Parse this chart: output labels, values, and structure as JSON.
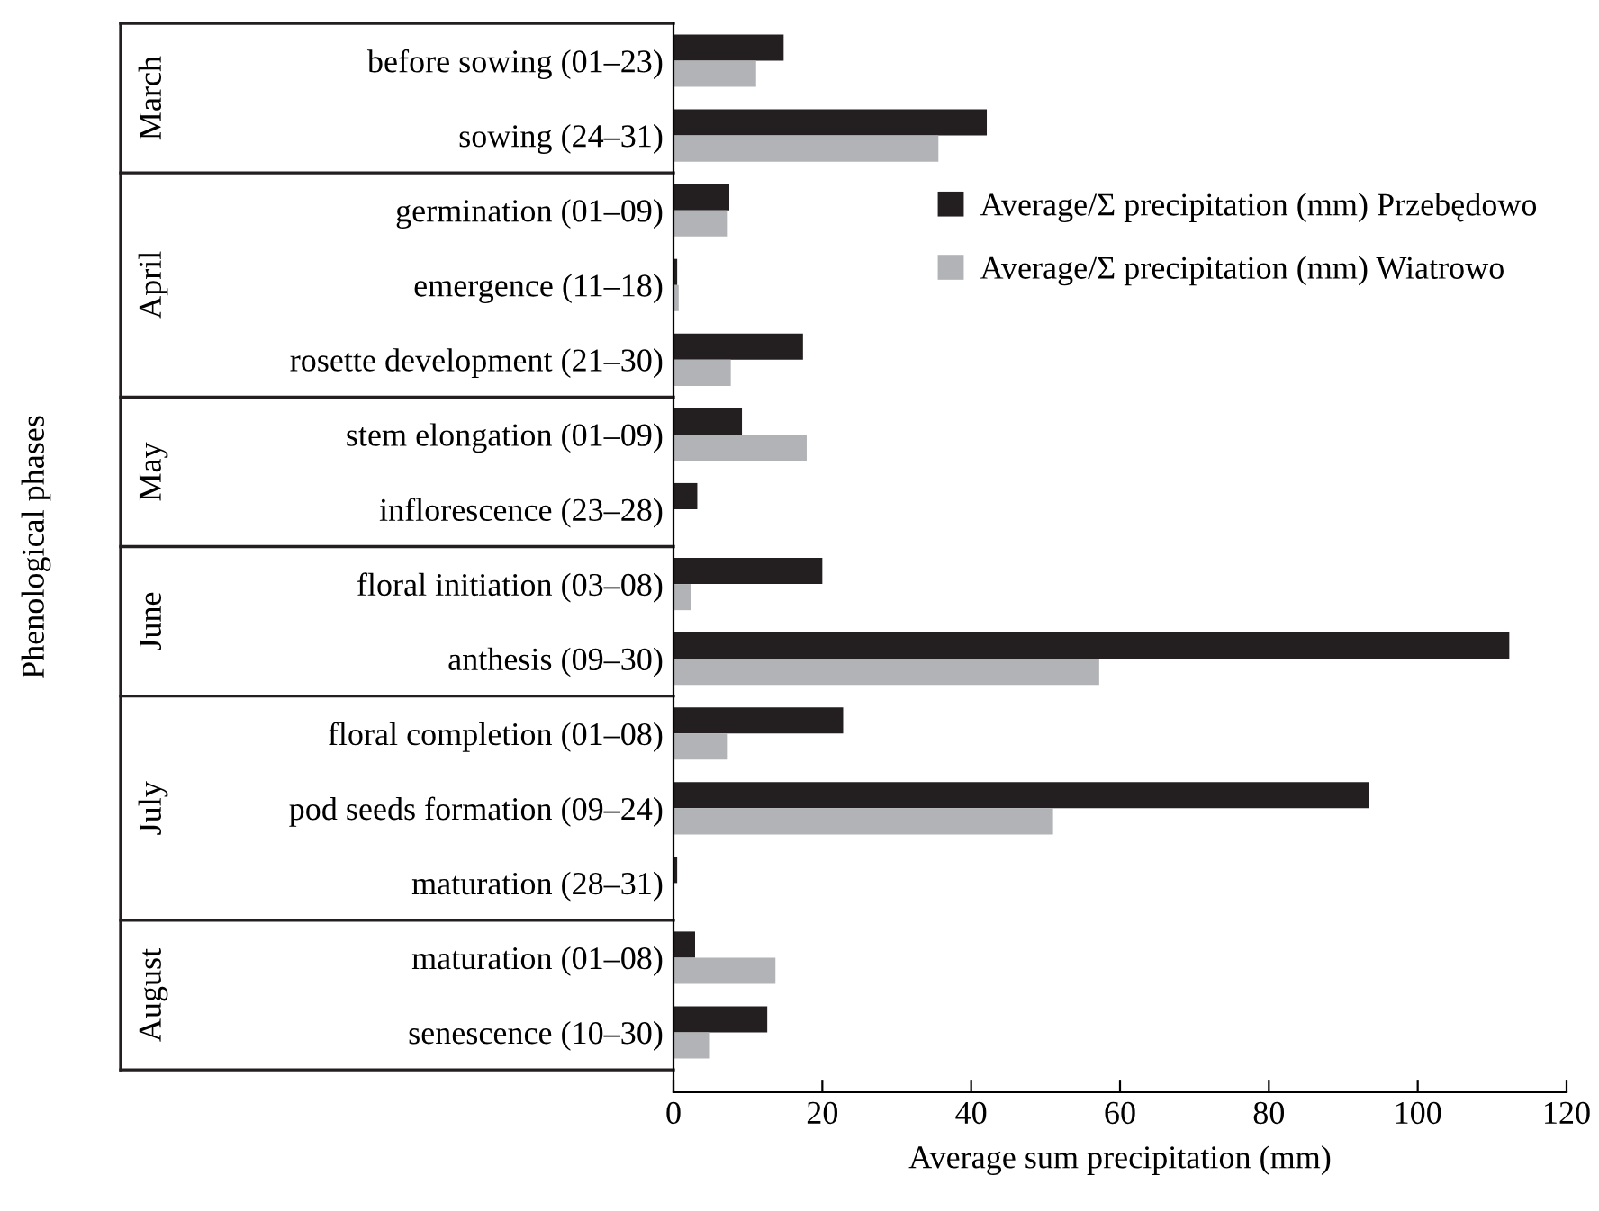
{
  "chart_data": {
    "type": "bar",
    "orientation": "horizontal",
    "xlabel": "Average sum precipitation (mm)",
    "categories": [
      "before sowing (01–23)",
      "sowing (24–31)",
      "germination (01–09)",
      "emergence (11–18)",
      "rosette development (21–30)",
      "stem elongation (01–09)",
      "inflorescence (23–28)",
      "floral initiation (03–08)",
      "anthesis (09–30)",
      "floral completion (01–08)",
      "pod seeds formation (09–24)",
      "maturation (28–31)",
      "maturation (01–08)",
      "senescence (10–30)"
    ],
    "series": [
      {
        "name": "Average/Σ precipitation (mm) Przebędowo",
        "color": "#231f20",
        "values": [
          14.8,
          42.1,
          7.5,
          0.5,
          17.4,
          9.2,
          3.2,
          20.0,
          112.3,
          22.8,
          93.5,
          0.5,
          2.9,
          12.6
        ]
      },
      {
        "name": "Average/Σ precipitation (mm) Wiatrowo",
        "color": "#b1b3b6",
        "values": [
          11.1,
          35.6,
          7.3,
          0.7,
          7.7,
          17.9,
          null,
          2.3,
          57.2,
          7.3,
          51.0,
          0,
          13.7,
          4.9
        ]
      }
    ],
    "annotations": [
      "March",
      "April",
      "May",
      "June",
      "July",
      "August",
      "Phenological phases"
    ],
    "xlim": [
      0,
      120
    ],
    "xticks": [
      0,
      20,
      40,
      60,
      80,
      100,
      120
    ],
    "grid": false,
    "legend": "top right"
  }
}
